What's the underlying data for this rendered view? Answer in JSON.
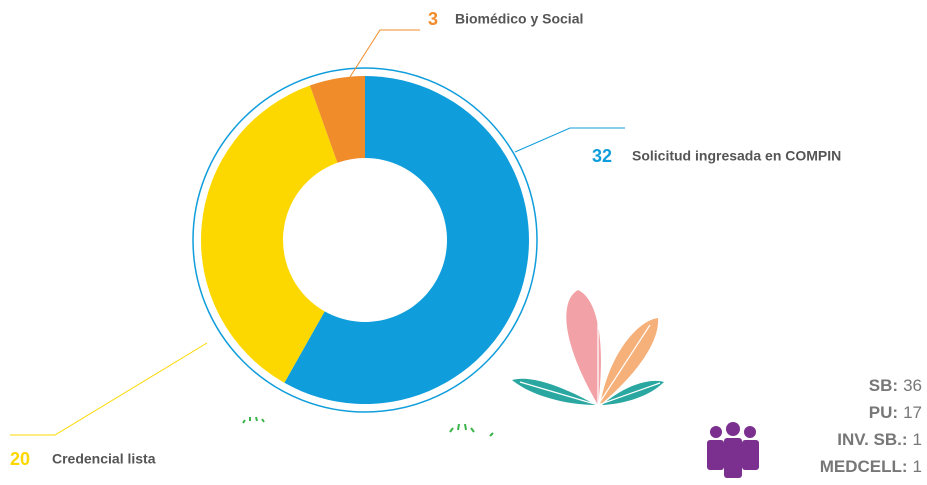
{
  "chart_data": {
    "type": "donut",
    "categories": [
      "Solicitud ingresada en COMPIN",
      "Credencial lista",
      "Biomédico y Social"
    ],
    "values": [
      32,
      20,
      3
    ],
    "colors": [
      "#0f9ddb",
      "#fcd800",
      "#f08c2a"
    ]
  },
  "stats": [
    {
      "label": "SB:",
      "value": 36
    },
    {
      "label": "PU:",
      "value": 17
    },
    {
      "label": "INV. SB.:",
      "value": 1
    },
    {
      "label": "MEDCELL:",
      "value": 1
    }
  ]
}
